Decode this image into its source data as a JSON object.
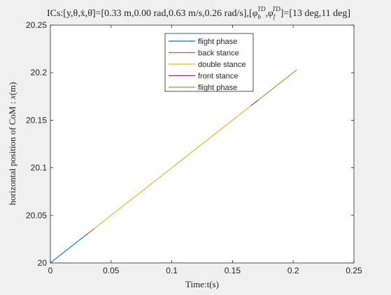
{
  "chart_data": {
    "type": "line",
    "title": "ICs:[y,θ,ẋ,θ̇]=[0.33 m,0.00 rad,0.63 m/s,0.26 rad/s],[φ_b^TD,φ_f^TD]=[13 deg,11 deg]",
    "title_parts": {
      "ics_prefix": "ICs:[y,θ,",
      "xdot": "ẋ",
      "comma1": ",",
      "thetadot": "θ̇",
      "ics_values": "]=[0.33 m,0.00 rad,0.63 m/s,0.26 rad/s],[",
      "phi1": "φ",
      "phi1_sub": "b",
      "phi_sup": "TD",
      "comma2": ",",
      "phi2": "φ",
      "phi2_sub": "f",
      "angles": "]=[13 deg,11 deg]"
    },
    "xlabel": "Time:t(s)",
    "ylabel": "horizontal position of CoM : x(m)",
    "ylabel_parts": {
      "prefix": "horizontal position of CoM : ",
      "var": "x",
      "suffix": "(m)"
    },
    "xlim": [
      0,
      0.25
    ],
    "ylim": [
      20,
      20.25
    ],
    "xticks": [
      0,
      0.05,
      0.1,
      0.15,
      0.2,
      0.25
    ],
    "xtick_labels": [
      "0",
      "0.05",
      "0.1",
      "0.15",
      "0.2",
      "0.25"
    ],
    "yticks": [
      20,
      20.05,
      20.1,
      20.15,
      20.2,
      20.25
    ],
    "ytick_labels": [
      "20",
      "20.05",
      "20.1",
      "20.15",
      "20.2",
      "20.25"
    ],
    "grid": false,
    "legend_position": "top-center",
    "series": [
      {
        "name": "flight phase",
        "color": "#0072BD",
        "x": [
          0,
          0.031
        ],
        "y": [
          20,
          20.031
        ]
      },
      {
        "name": "back stance",
        "color": "#D95319",
        "x": [
          0.031,
          0.036
        ],
        "y": [
          20.031,
          20.036
        ]
      },
      {
        "name": "double stance",
        "color": "#EDB120",
        "x": [
          0.036,
          0.165
        ],
        "y": [
          20.036,
          20.165
        ]
      },
      {
        "name": "front stance",
        "color": "#7E2F8E",
        "x": [
          0.165,
          0.171
        ],
        "y": [
          20.165,
          20.171
        ]
      },
      {
        "name": "flight phase",
        "color": "#77AC30",
        "x": [
          0.171,
          0.203
        ],
        "y": [
          20.171,
          20.203
        ]
      }
    ]
  }
}
